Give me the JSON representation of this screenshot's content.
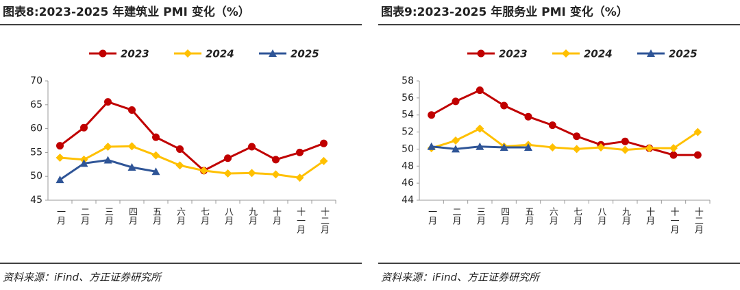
{
  "chart_data": [
    {
      "type": "line",
      "title": "图表8:2023-2025 年建筑业 PMI 变化（%）",
      "source": "资料来源：iFind、方正证券研究所",
      "categories": [
        "一月",
        "二月",
        "三月",
        "四月",
        "五月",
        "六月",
        "七月",
        "八月",
        "九月",
        "十月",
        "十一月",
        "十二月"
      ],
      "series": [
        {
          "name": "2023",
          "color": "#c00000",
          "marker": "circle",
          "values": [
            56.4,
            60.2,
            65.6,
            63.9,
            58.2,
            55.7,
            51.2,
            53.8,
            56.2,
            53.5,
            55.0,
            56.9
          ]
        },
        {
          "name": "2024",
          "color": "#ffc000",
          "marker": "diamond",
          "values": [
            53.9,
            53.5,
            56.2,
            56.3,
            54.4,
            52.3,
            51.2,
            50.6,
            50.7,
            50.4,
            49.7,
            53.2
          ]
        },
        {
          "name": "2025",
          "color": "#2f5597",
          "marker": "triangle",
          "values": [
            49.3,
            52.7,
            53.4,
            51.9,
            51.0,
            null,
            null,
            null,
            null,
            null,
            null,
            null
          ]
        }
      ],
      "ylim": [
        45,
        70
      ],
      "yticks": [
        45,
        50,
        55,
        60,
        65,
        70
      ]
    },
    {
      "type": "line",
      "title": "图表9:2023-2025 年服务业 PMI 变化（%）",
      "source": "资料来源：iFind、方正证券研究所",
      "categories": [
        "一月",
        "二月",
        "三月",
        "四月",
        "五月",
        "六月",
        "七月",
        "八月",
        "九月",
        "十月",
        "十一月",
        "十二月"
      ],
      "series": [
        {
          "name": "2023",
          "color": "#c00000",
          "marker": "circle",
          "values": [
            54.0,
            55.6,
            56.9,
            55.1,
            53.8,
            52.8,
            51.5,
            50.5,
            50.9,
            50.1,
            49.3,
            49.3
          ]
        },
        {
          "name": "2024",
          "color": "#ffc000",
          "marker": "diamond",
          "values": [
            50.1,
            51.0,
            52.4,
            50.3,
            50.5,
            50.2,
            50.0,
            50.2,
            49.9,
            50.1,
            50.1,
            52.0
          ]
        },
        {
          "name": "2025",
          "color": "#2f5597",
          "marker": "triangle",
          "values": [
            50.3,
            50.0,
            50.3,
            50.2,
            50.2,
            null,
            null,
            null,
            null,
            null,
            null,
            null
          ]
        }
      ],
      "ylim": [
        44,
        58
      ],
      "yticks": [
        44,
        46,
        48,
        50,
        52,
        54,
        56,
        58
      ]
    }
  ]
}
